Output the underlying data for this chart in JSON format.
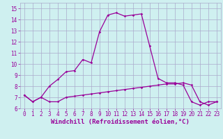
{
  "xlabel": "Windchill (Refroidissement éolien,°C)",
  "background_color": "#cff0f0",
  "line1_x": [
    0,
    1,
    2,
    3,
    4,
    5,
    6,
    7,
    8,
    9,
    10,
    11,
    12,
    13,
    14,
    15,
    16,
    17,
    18,
    19,
    20,
    21,
    22,
    23
  ],
  "line1_y": [
    7.2,
    6.6,
    7.0,
    6.6,
    6.6,
    7.0,
    7.1,
    7.2,
    7.3,
    7.4,
    7.5,
    7.6,
    7.7,
    7.8,
    7.9,
    8.0,
    8.1,
    8.2,
    8.2,
    8.3,
    8.1,
    6.6,
    6.3,
    6.6
  ],
  "line2_x": [
    0,
    1,
    2,
    3,
    4,
    5,
    6,
    7,
    8,
    9,
    10,
    11,
    12,
    13,
    14,
    15,
    16,
    17,
    18,
    19,
    20,
    21,
    22,
    23
  ],
  "line2_y": [
    7.2,
    6.6,
    7.0,
    8.0,
    8.6,
    9.3,
    9.4,
    10.4,
    10.1,
    12.9,
    14.4,
    14.6,
    14.3,
    14.4,
    14.5,
    11.6,
    8.7,
    8.3,
    8.3,
    8.1,
    6.6,
    6.3,
    6.6,
    6.6
  ],
  "line_color": "#990099",
  "grid_color": "#aaaacc",
  "xlim": [
    -0.5,
    23.5
  ],
  "ylim": [
    6.0,
    15.5
  ],
  "yticks": [
    6,
    7,
    8,
    9,
    10,
    11,
    12,
    13,
    14,
    15
  ],
  "xticks": [
    0,
    1,
    2,
    3,
    4,
    5,
    6,
    7,
    8,
    9,
    10,
    11,
    12,
    13,
    14,
    15,
    16,
    17,
    18,
    19,
    20,
    21,
    22,
    23
  ],
  "tick_fontsize": 5.5,
  "xlabel_fontsize": 6.5
}
